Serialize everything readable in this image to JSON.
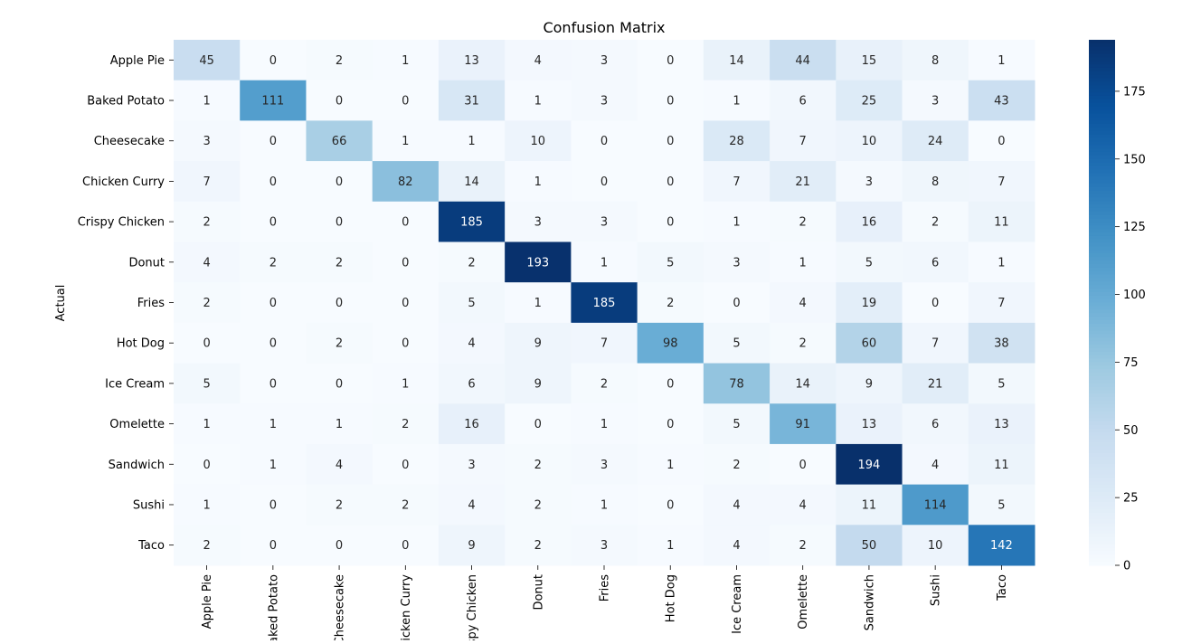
{
  "chart_data": {
    "type": "heatmap",
    "title": "Confusion Matrix",
    "ylabel": "Actual",
    "xlabel": "",
    "row_labels": [
      "Apple Pie",
      "Baked Potato",
      "Cheesecake",
      "Chicken Curry",
      "Crispy Chicken",
      "Donut",
      "Fries",
      "Hot Dog",
      "Ice Cream",
      "Omelette",
      "Sandwich",
      "Sushi",
      "Taco"
    ],
    "col_labels": [
      "Apple Pie",
      "Baked Potato",
      "Cheesecake",
      "Chicken Curry",
      "Crispy Chicken",
      "Donut",
      "Fries",
      "Hot Dog",
      "Ice Cream",
      "Omelette",
      "Sandwich",
      "Sushi",
      "Taco"
    ],
    "values": [
      [
        45,
        0,
        2,
        1,
        13,
        4,
        3,
        0,
        14,
        44,
        15,
        8,
        1
      ],
      [
        1,
        111,
        0,
        0,
        31,
        1,
        3,
        0,
        1,
        6,
        25,
        3,
        43
      ],
      [
        3,
        0,
        66,
        1,
        1,
        10,
        0,
        0,
        28,
        7,
        10,
        24,
        0
      ],
      [
        7,
        0,
        0,
        82,
        14,
        1,
        0,
        0,
        7,
        21,
        3,
        8,
        7
      ],
      [
        2,
        0,
        0,
        0,
        185,
        3,
        3,
        0,
        1,
        2,
        16,
        2,
        11
      ],
      [
        4,
        2,
        2,
        0,
        2,
        193,
        1,
        5,
        3,
        1,
        5,
        6,
        1
      ],
      [
        2,
        0,
        0,
        0,
        5,
        1,
        185,
        2,
        0,
        4,
        19,
        0,
        7
      ],
      [
        0,
        0,
        2,
        0,
        4,
        9,
        7,
        98,
        5,
        2,
        60,
        7,
        38
      ],
      [
        5,
        0,
        0,
        1,
        6,
        9,
        2,
        0,
        78,
        14,
        9,
        21,
        5
      ],
      [
        1,
        1,
        1,
        2,
        16,
        0,
        1,
        0,
        5,
        91,
        13,
        6,
        13
      ],
      [
        0,
        1,
        4,
        0,
        3,
        2,
        3,
        1,
        2,
        0,
        194,
        4,
        11
      ],
      [
        1,
        0,
        2,
        2,
        4,
        2,
        1,
        0,
        4,
        4,
        11,
        114,
        5
      ],
      [
        2,
        0,
        0,
        0,
        9,
        2,
        3,
        1,
        4,
        2,
        50,
        10,
        142
      ]
    ],
    "colormap": "Blues",
    "colorbar_ticks": [
      0,
      25,
      50,
      75,
      100,
      125,
      150,
      175
    ],
    "colorbar_range": [
      0,
      194
    ]
  }
}
